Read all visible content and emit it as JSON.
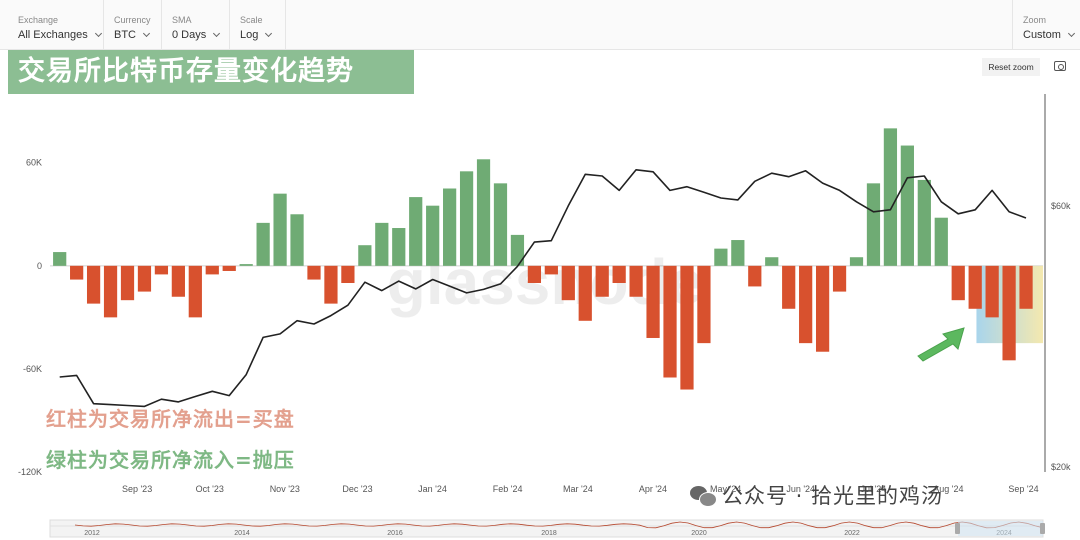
{
  "toolbar": {
    "exchange": {
      "label": "Exchange",
      "value": "All Exchanges"
    },
    "currency": {
      "label": "Currency",
      "value": "BTC"
    },
    "sma": {
      "label": "SMA",
      "value": "0 Days"
    },
    "scale": {
      "label": "Scale",
      "value": "Log"
    },
    "zoom": {
      "label": "Zoom",
      "value": "Custom"
    }
  },
  "reset_zoom_label": "Reset zoom",
  "title": "交易所比特币存量变化趋势",
  "annotations": {
    "red": "红柱为交易所净流出=买盘",
    "green": "绿柱为交易所净流入=抛压"
  },
  "watermark": {
    "text": "公众号 · 拾光里的鸡汤",
    "icon": "wechat-icon"
  },
  "logo_text": "glassnode",
  "colors": {
    "inflow": "#6fab74",
    "outflow": "#d8512e",
    "price": "#222222",
    "highlight": "#9fd0ea"
  },
  "chart_data": {
    "type": "bar",
    "series": [
      {
        "name": "",
        "kind": "bar",
        "axis": "left",
        "x": [
          "2023-08-05",
          "2023-08-12",
          "2023-08-19",
          "2023-08-26",
          "2023-09-02",
          "2023-09-09",
          "2023-09-16",
          "2023-09-23",
          "2023-09-30",
          "2023-10-07",
          "2023-10-14",
          "2023-10-21",
          "2023-10-28",
          "2023-11-04",
          "2023-11-11",
          "2023-11-18",
          "2023-11-25",
          "2023-12-02",
          "2023-12-09",
          "2023-12-16",
          "2023-12-23",
          "2023-12-30",
          "2024-01-06",
          "2024-01-13",
          "2024-01-20",
          "2024-01-27",
          "2024-02-03",
          "2024-02-10",
          "2024-02-17",
          "2024-02-24",
          "2024-03-02",
          "2024-03-09",
          "2024-03-16",
          "2024-03-23",
          "2024-03-30",
          "2024-04-06",
          "2024-04-13",
          "2024-04-20",
          "2024-04-27",
          "2024-05-04",
          "2024-05-11",
          "2024-05-18",
          "2024-05-25",
          "2024-06-01",
          "2024-06-08",
          "2024-06-15",
          "2024-06-22",
          "2024-06-29",
          "2024-07-06",
          "2024-07-13",
          "2024-07-20",
          "2024-07-27",
          "2024-08-03",
          "2024-08-10",
          "2024-08-17",
          "2024-08-24",
          "2024-08-31",
          "2024-09-07"
        ],
        "values": [
          8000,
          -8000,
          -22000,
          -30000,
          -20000,
          -15000,
          -5000,
          -18000,
          -30000,
          -5000,
          -3000,
          1000,
          25000,
          42000,
          30000,
          -8000,
          -22000,
          -10000,
          12000,
          25000,
          22000,
          40000,
          35000,
          45000,
          55000,
          62000,
          48000,
          18000,
          -10000,
          -5000,
          -20000,
          -32000,
          -18000,
          -10000,
          -18000,
          -42000,
          -65000,
          -72000,
          -45000,
          10000,
          15000,
          -12000,
          5000,
          -25000,
          -45000,
          -50000,
          -15000,
          5000,
          48000,
          80000,
          70000,
          50000,
          28000,
          -20000,
          -25000,
          -30000,
          -55000,
          -25000
        ]
      },
      {
        "name": "",
        "kind": "line",
        "axis": "right",
        "x": [
          "2023-08-05",
          "2023-08-12",
          "2023-08-19",
          "2023-08-26",
          "2023-09-02",
          "2023-09-09",
          "2023-09-16",
          "2023-09-23",
          "2023-09-30",
          "2023-10-07",
          "2023-10-14",
          "2023-10-21",
          "2023-10-28",
          "2023-11-04",
          "2023-11-11",
          "2023-11-18",
          "2023-11-25",
          "2023-12-02",
          "2023-12-09",
          "2023-12-16",
          "2023-12-23",
          "2023-12-30",
          "2024-01-06",
          "2024-01-13",
          "2024-01-20",
          "2024-01-27",
          "2024-02-03",
          "2024-02-10",
          "2024-02-17",
          "2024-02-24",
          "2024-03-02",
          "2024-03-09",
          "2024-03-16",
          "2024-03-23",
          "2024-03-30",
          "2024-04-06",
          "2024-04-13",
          "2024-04-20",
          "2024-04-27",
          "2024-05-04",
          "2024-05-11",
          "2024-05-18",
          "2024-05-25",
          "2024-06-01",
          "2024-06-08",
          "2024-06-15",
          "2024-06-22",
          "2024-06-29",
          "2024-07-06",
          "2024-07-13",
          "2024-07-20",
          "2024-07-27",
          "2024-08-03",
          "2024-08-10",
          "2024-08-17",
          "2024-08-24",
          "2024-08-31",
          "2024-09-07"
        ],
        "values": [
          29200,
          29400,
          26100,
          26000,
          25900,
          25800,
          26600,
          26300,
          26900,
          27500,
          27000,
          29500,
          34500,
          35000,
          37000,
          36500,
          37800,
          39500,
          43500,
          42000,
          43700,
          42300,
          44000,
          42800,
          41600,
          42200,
          43200,
          46500,
          51500,
          51800,
          60000,
          68500,
          68000,
          64000,
          69800,
          69200,
          64000,
          65000,
          63500,
          62000,
          61500,
          66500,
          68800,
          67800,
          69500,
          66000,
          64000,
          61000,
          58500,
          59000,
          67500,
          68000,
          61000,
          58000,
          59000,
          64000,
          58500,
          57000
        ]
      }
    ],
    "yaxis_left": {
      "ticks": [
        "60K",
        "0",
        "-60K",
        "-120K"
      ],
      "range": [
        -120000,
        100000
      ]
    },
    "yaxis_right": {
      "ticks": [
        "$60k",
        "$20k"
      ],
      "scale": "log"
    },
    "xaxis": {
      "ticks": [
        "Sep '23",
        "Oct '23",
        "Nov '23",
        "Dec '23",
        "Jan '24",
        "Feb '24",
        "Mar '24",
        "Apr '24",
        "May '24",
        "Jun '24",
        "Jul '24",
        "Aug '24",
        "Sep '24"
      ]
    },
    "navigator": {
      "ticks": [
        "2012",
        "2014",
        "2016",
        "2018",
        "2020",
        "2022",
        "2024"
      ]
    }
  }
}
